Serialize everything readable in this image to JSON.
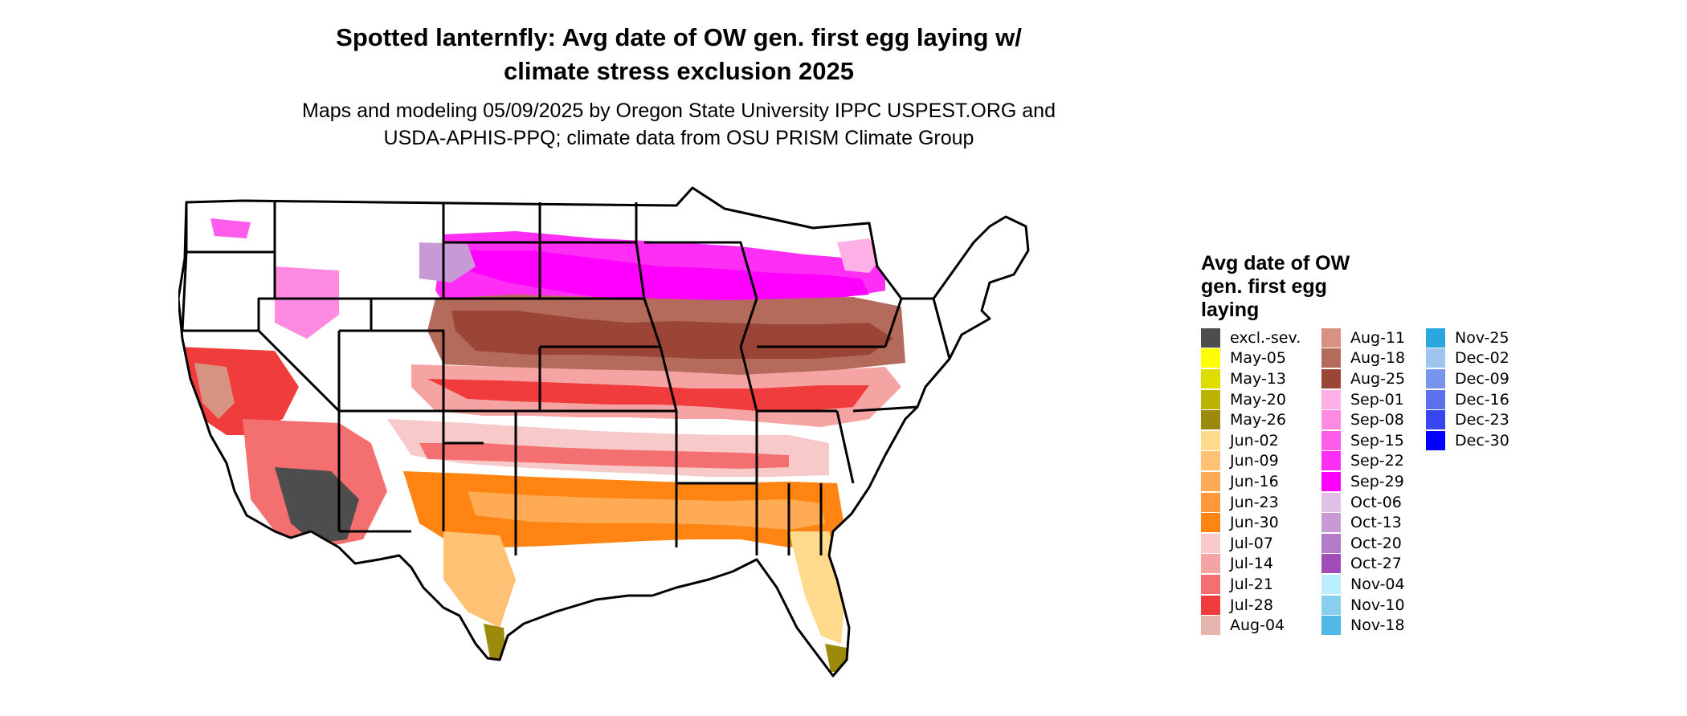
{
  "title_lines": [
    "Spotted lanternfly: Avg date of OW gen. first egg laying w/",
    "climate stress exclusion 2025"
  ],
  "subtitle_lines": [
    "Maps and modeling 05/09/2025 by Oregon State University IPPC USPEST.ORG and",
    "USDA-APHIS-PPQ; climate data from OSU PRISM Climate Group"
  ],
  "legend": {
    "title_lines": [
      "Avg date of OW",
      "gen. first egg",
      "laying"
    ],
    "columns": [
      [
        {
          "label": "excl.-sev.",
          "color": "#4d4d4d"
        },
        {
          "label": "May-05",
          "color": "#ffff00"
        },
        {
          "label": "May-13",
          "color": "#dfdc00"
        },
        {
          "label": "May-20",
          "color": "#bcb300"
        },
        {
          "label": "May-26",
          "color": "#9e8a0a"
        },
        {
          "label": "Jun-02",
          "color": "#ffd98c"
        },
        {
          "label": "Jun-09",
          "color": "#ffc275"
        },
        {
          "label": "Jun-16",
          "color": "#ffaa55"
        },
        {
          "label": "Jun-23",
          "color": "#ff9838"
        },
        {
          "label": "Jun-30",
          "color": "#ff8412"
        },
        {
          "label": "Jul-07",
          "color": "#f7c9c9"
        },
        {
          "label": "Jul-14",
          "color": "#f5a3a3"
        },
        {
          "label": "Jul-21",
          "color": "#f47070"
        },
        {
          "label": "Jul-28",
          "color": "#f03c3c"
        },
        {
          "label": "Aug-04",
          "color": "#e6b5ad"
        }
      ],
      [
        {
          "label": "Aug-11",
          "color": "#d89282"
        },
        {
          "label": "Aug-18",
          "color": "#b56b5b"
        },
        {
          "label": "Aug-25",
          "color": "#9a4535"
        },
        {
          "label": "Sep-01",
          "color": "#ffb0e6"
        },
        {
          "label": "Sep-08",
          "color": "#ff8ae2"
        },
        {
          "label": "Sep-15",
          "color": "#ff5cec"
        },
        {
          "label": "Sep-22",
          "color": "#ff2ef4"
        },
        {
          "label": "Sep-29",
          "color": "#ff00ff"
        },
        {
          "label": "Oct-06",
          "color": "#dfc1e8"
        },
        {
          "label": "Oct-13",
          "color": "#c79ad6"
        },
        {
          "label": "Oct-20",
          "color": "#b27cc8"
        },
        {
          "label": "Oct-27",
          "color": "#a04db8"
        },
        {
          "label": "Nov-04",
          "color": "#bbeeff"
        },
        {
          "label": "Nov-10",
          "color": "#87cfec"
        },
        {
          "label": "Nov-18",
          "color": "#52b8e6"
        }
      ],
      [
        {
          "label": "Nov-25",
          "color": "#2aa6e0"
        },
        {
          "label": "Dec-02",
          "color": "#9ec5f0"
        },
        {
          "label": "Dec-09",
          "color": "#7795ee"
        },
        {
          "label": "Dec-16",
          "color": "#5b70ec"
        },
        {
          "label": "Dec-23",
          "color": "#3846f0"
        },
        {
          "label": "Dec-30",
          "color": "#0000ff"
        }
      ]
    ]
  }
}
